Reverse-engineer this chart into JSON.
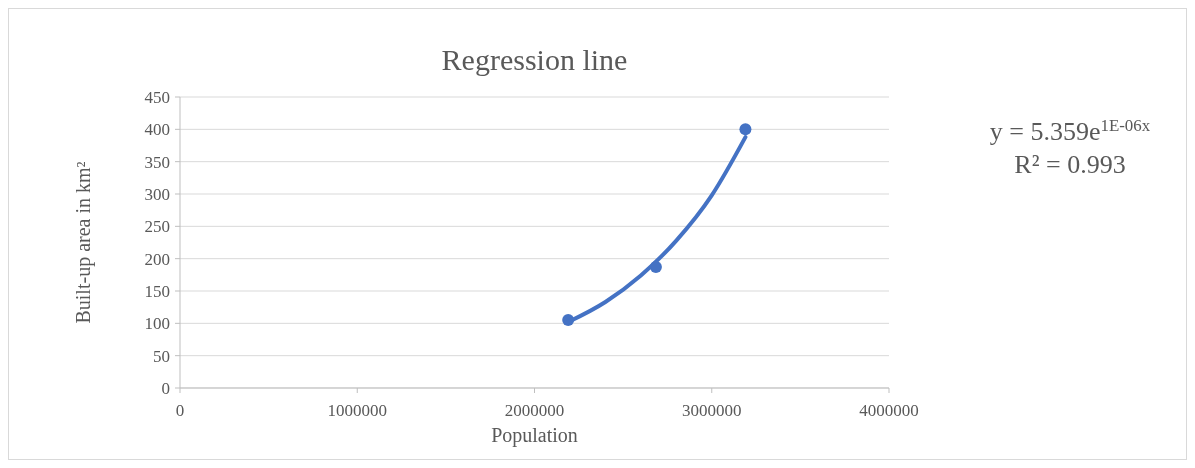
{
  "chart_data": {
    "type": "scatter",
    "title": "Regression line",
    "xlabel": "Population",
    "ylabel": "Built-up area in km²",
    "xlim": [
      0,
      4000000
    ],
    "xticks": [
      0,
      1000000,
      2000000,
      3000000,
      4000000
    ],
    "ylim": [
      0,
      450
    ],
    "yticks": [
      0,
      50,
      100,
      150,
      200,
      250,
      300,
      350,
      400,
      450
    ],
    "grid": "y",
    "marker": "circle",
    "series": [
      {
        "color": "#4472c4",
        "x": [
          2190000,
          2685000,
          3190000
        ],
        "values": [
          105,
          187,
          400
        ]
      },
      {
        "type": "line",
        "color": "#4472c4",
        "line_style": "solid",
        "marker": "none",
        "x": [
          2190000,
          2400000,
          2600000,
          2800000,
          3000000,
          3190000
        ],
        "values": [
          102,
          133,
          174,
          228,
          298,
          388
        ]
      }
    ],
    "annotations": [
      "y = 5.359e$^{1E-06x}$",
      "R² = 0.993"
    ]
  }
}
